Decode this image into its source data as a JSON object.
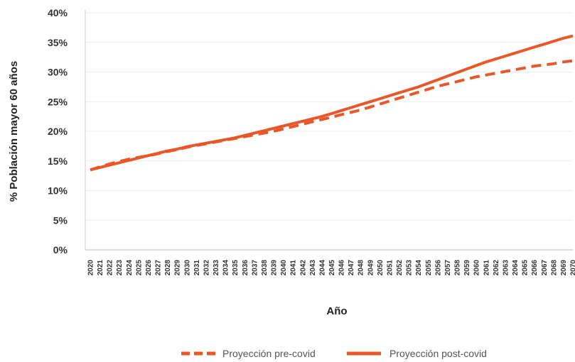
{
  "chart_data": {
    "type": "line",
    "xlabel": "Año",
    "ylabel": "% Población mayor 60 años",
    "ylim": [
      0,
      40
    ],
    "yticks": [
      "0%",
      "5%",
      "10%",
      "15%",
      "20%",
      "25%",
      "30%",
      "35%",
      "40%"
    ],
    "x": [
      "2020",
      "2021",
      "2022",
      "2023",
      "2024",
      "2025",
      "2026",
      "2027",
      "2028",
      "2029",
      "2030",
      "2031",
      "2032",
      "2033",
      "2034",
      "2035",
      "2036",
      "2037",
      "2038",
      "2039",
      "2040",
      "2041",
      "2042",
      "2043",
      "2044",
      "2045",
      "2046",
      "2047",
      "2048",
      "2049",
      "2050",
      "2051",
      "2052",
      "2053",
      "2054",
      "2055",
      "2056",
      "2057",
      "2058",
      "2059",
      "2060",
      "2061",
      "2062",
      "2063",
      "2064",
      "2065",
      "2066",
      "2067",
      "2068",
      "2069",
      "2070"
    ],
    "grid": "horizontal",
    "legend_position": "bottom",
    "series": [
      {
        "name": "Proyección pre-covid",
        "style": "dashed",
        "color": "#e8572a",
        "values": [
          13.5,
          14.0,
          14.5,
          14.9,
          15.3,
          15.6,
          15.9,
          16.2,
          16.6,
          16.9,
          17.3,
          17.6,
          17.9,
          18.2,
          18.5,
          18.8,
          19.1,
          19.4,
          19.7,
          20.0,
          20.4,
          20.8,
          21.2,
          21.6,
          22.0,
          22.4,
          22.8,
          23.2,
          23.6,
          24.1,
          24.6,
          25.1,
          25.6,
          26.1,
          26.6,
          27.1,
          27.6,
          28.0,
          28.4,
          28.8,
          29.2,
          29.5,
          29.8,
          30.1,
          30.4,
          30.7,
          31.0,
          31.2,
          31.4,
          31.7,
          31.9
        ]
      },
      {
        "name": "Proyección post-covid",
        "style": "solid",
        "color": "#e8572a",
        "values": [
          13.5,
          13.9,
          14.3,
          14.7,
          15.1,
          15.5,
          15.9,
          16.3,
          16.7,
          17.0,
          17.4,
          17.7,
          18.0,
          18.3,
          18.6,
          18.9,
          19.3,
          19.7,
          20.1,
          20.5,
          20.9,
          21.3,
          21.7,
          22.1,
          22.5,
          23.0,
          23.5,
          24.0,
          24.5,
          25.0,
          25.5,
          26.0,
          26.5,
          27.0,
          27.5,
          28.1,
          28.7,
          29.3,
          29.9,
          30.5,
          31.1,
          31.7,
          32.2,
          32.7,
          33.2,
          33.7,
          34.2,
          34.7,
          35.2,
          35.7,
          36.1
        ]
      }
    ]
  }
}
